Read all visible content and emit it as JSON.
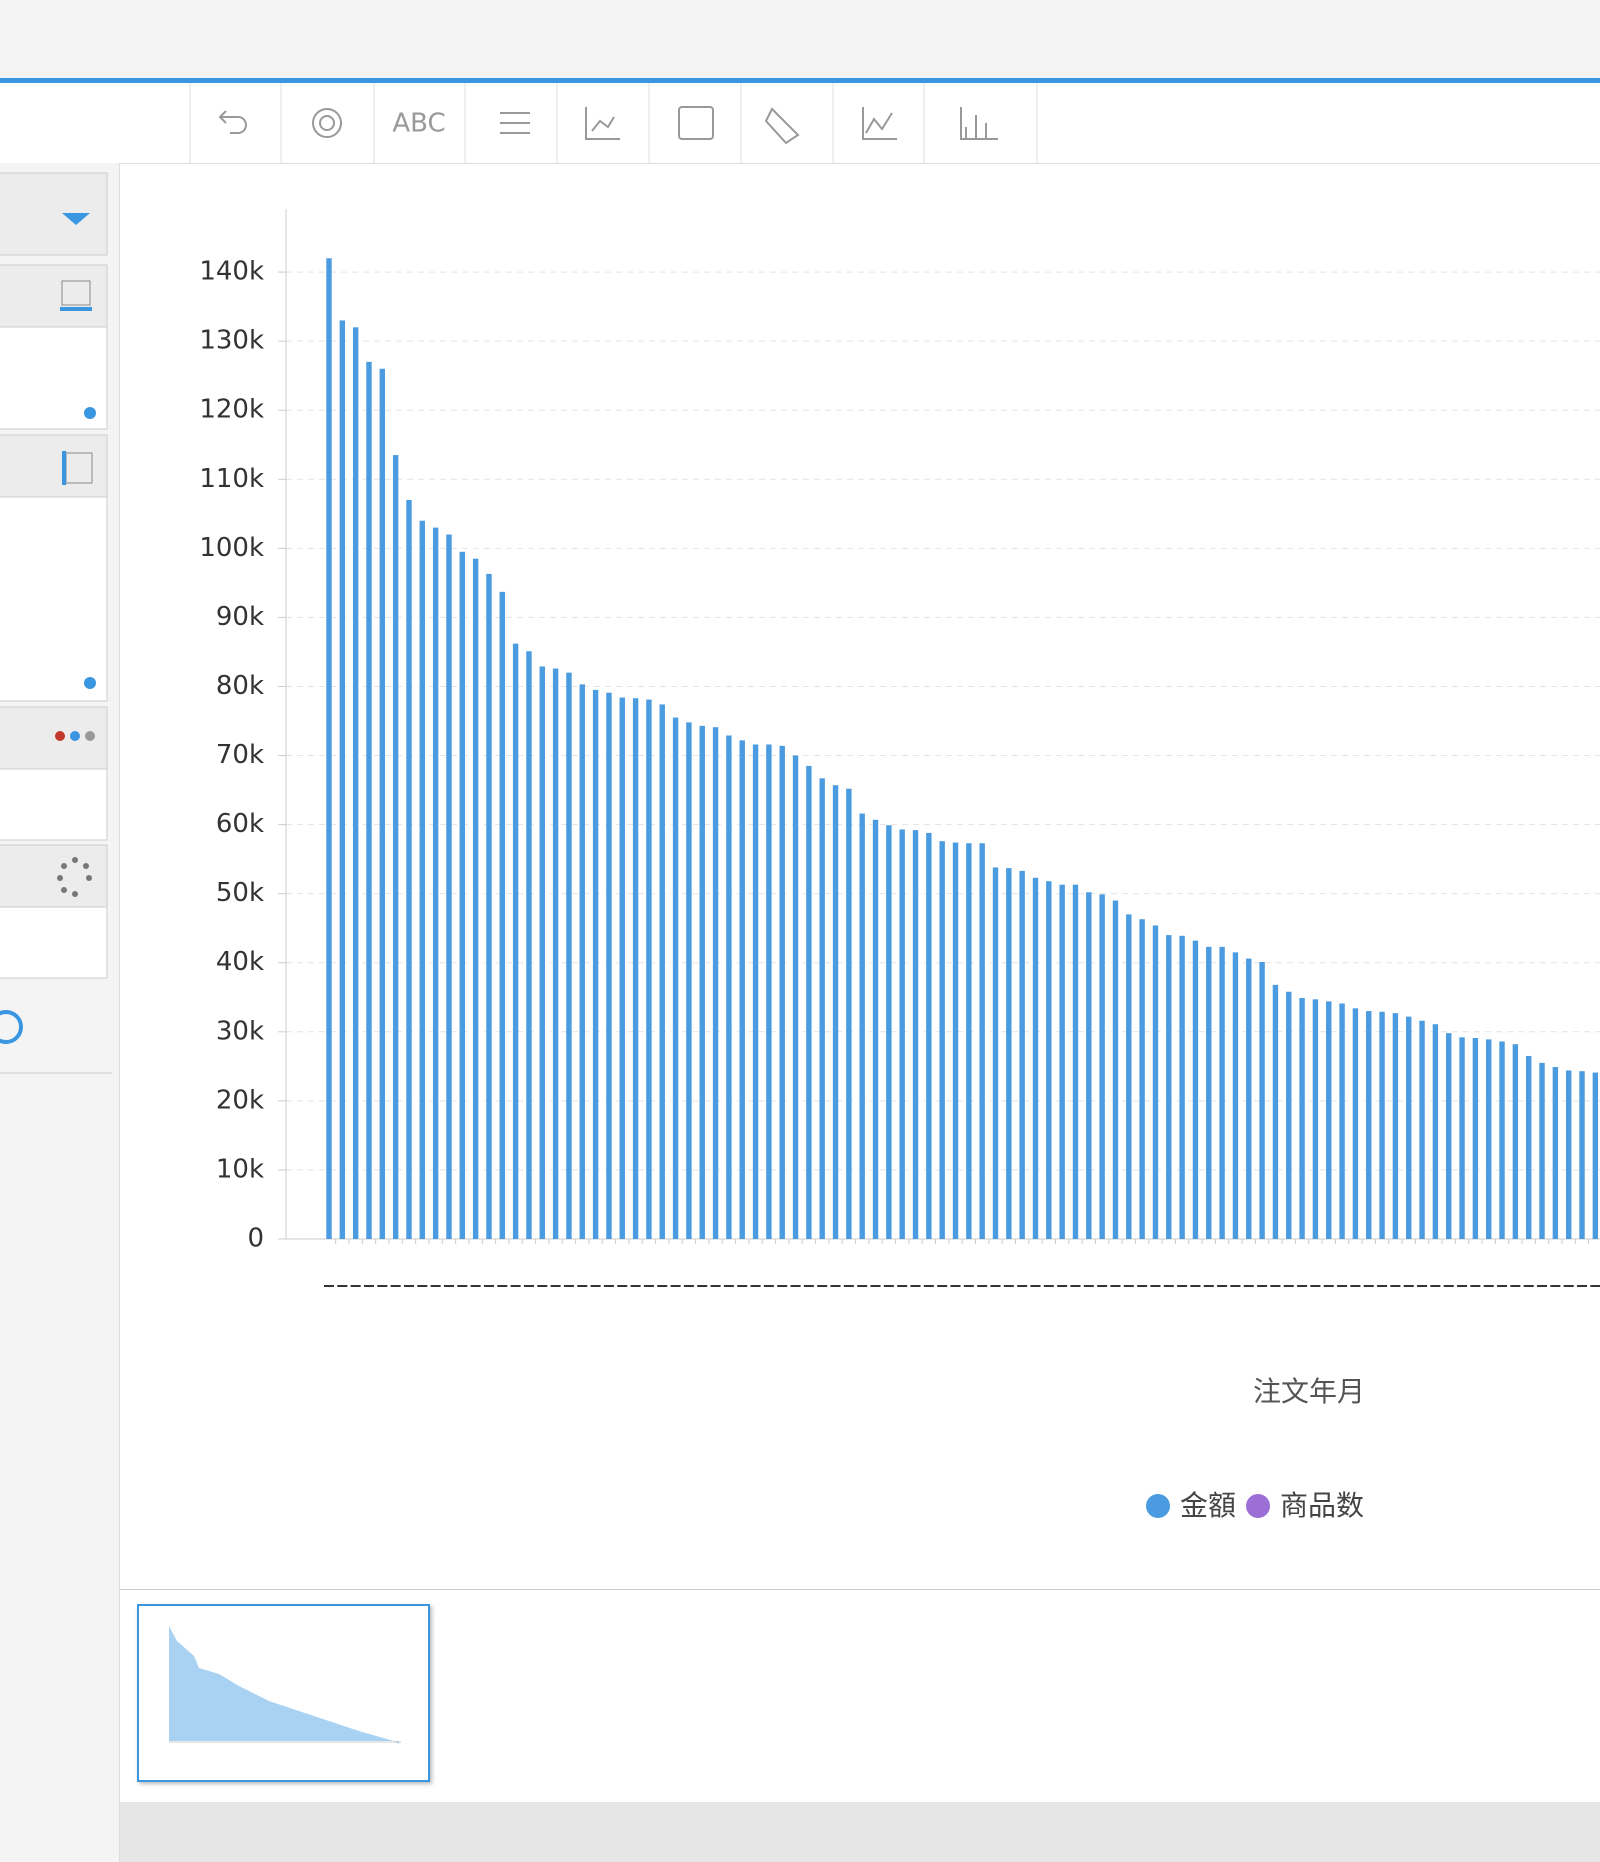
{
  "toolbar": {
    "text_icon": "ABC"
  },
  "chart_data": {
    "type": "bar",
    "x_label": "注文年月",
    "categories": [
      null,
      null,
      null,
      null,
      null,
      null,
      null,
      null,
      null,
      null,
      null,
      null,
      null,
      null,
      null,
      null,
      null,
      null,
      null,
      null,
      null,
      null,
      null,
      null,
      null,
      null,
      null,
      null,
      null,
      null,
      null,
      null,
      null,
      null,
      null,
      null,
      null,
      null,
      null,
      null,
      null,
      null,
      null,
      null,
      null,
      null,
      null,
      null,
      null,
      null,
      null,
      null,
      null,
      null,
      null,
      null,
      null,
      null,
      null,
      null,
      null,
      null,
      null,
      null,
      null,
      null,
      null,
      null,
      null,
      null,
      null,
      null,
      null,
      null,
      null,
      null,
      null,
      null,
      null,
      null,
      null,
      null,
      null,
      null,
      null,
      null,
      null,
      null,
      null,
      null,
      null,
      null,
      null,
      null,
      null,
      null
    ],
    "series": [
      {
        "name": "金額",
        "color": "#4a9be0",
        "values": [
          142000,
          133000,
          132000,
          127000,
          126000,
          113500,
          107000,
          104000,
          103000,
          102000,
          99500,
          98500,
          96300,
          93700,
          86200,
          85100,
          82900,
          82600,
          82000,
          80300,
          79500,
          79100,
          78400,
          78300,
          78100,
          77400,
          75500,
          74800,
          74300,
          74100,
          72900,
          72200,
          71600,
          71600,
          71400,
          70000,
          68500,
          66700,
          65700,
          65200,
          61600,
          60700,
          59900,
          59300,
          59200,
          58800,
          57600,
          57400,
          57300,
          57300,
          53800,
          53700,
          53300,
          52300,
          51800,
          51300,
          51300,
          50200,
          49900,
          49000,
          47000,
          46300,
          45400,
          44000,
          43900,
          43200,
          42300,
          42300,
          41500,
          40600,
          40100,
          36800,
          35800,
          34900,
          34700,
          34400,
          34100,
          33400,
          33000,
          32900,
          32700,
          32200,
          31600,
          31100,
          29800,
          29200,
          29100,
          28900,
          28600,
          28200,
          26500,
          25500,
          24900,
          24400,
          24300,
          24100
        ]
      }
    ],
    "legend": [
      {
        "name": "金額",
        "color": "#4a9be0"
      },
      {
        "name": "商品数",
        "color": "#9b6fd6"
      }
    ],
    "ylim": [
      0,
      150000
    ],
    "yticks": [
      0,
      {
        "value": 10000,
        "label": "10k"
      },
      {
        "value": 20000,
        "label": "20k"
      },
      {
        "value": 30000,
        "label": "30k"
      },
      {
        "value": 40000,
        "label": "40k"
      },
      {
        "value": 50000,
        "label": "50k"
      },
      {
        "value": 60000,
        "label": "60k"
      },
      {
        "value": 70000,
        "label": "70k"
      },
      {
        "value": 80000,
        "label": "80k"
      },
      {
        "value": 90000,
        "label": "90k"
      },
      {
        "value": 100000,
        "label": "100k"
      },
      {
        "value": 110000,
        "label": "110k"
      },
      {
        "value": 120000,
        "label": "120k"
      },
      {
        "value": 130000,
        "label": "130k"
      },
      {
        "value": 140000,
        "label": "140k"
      }
    ],
    "grid": true
  }
}
